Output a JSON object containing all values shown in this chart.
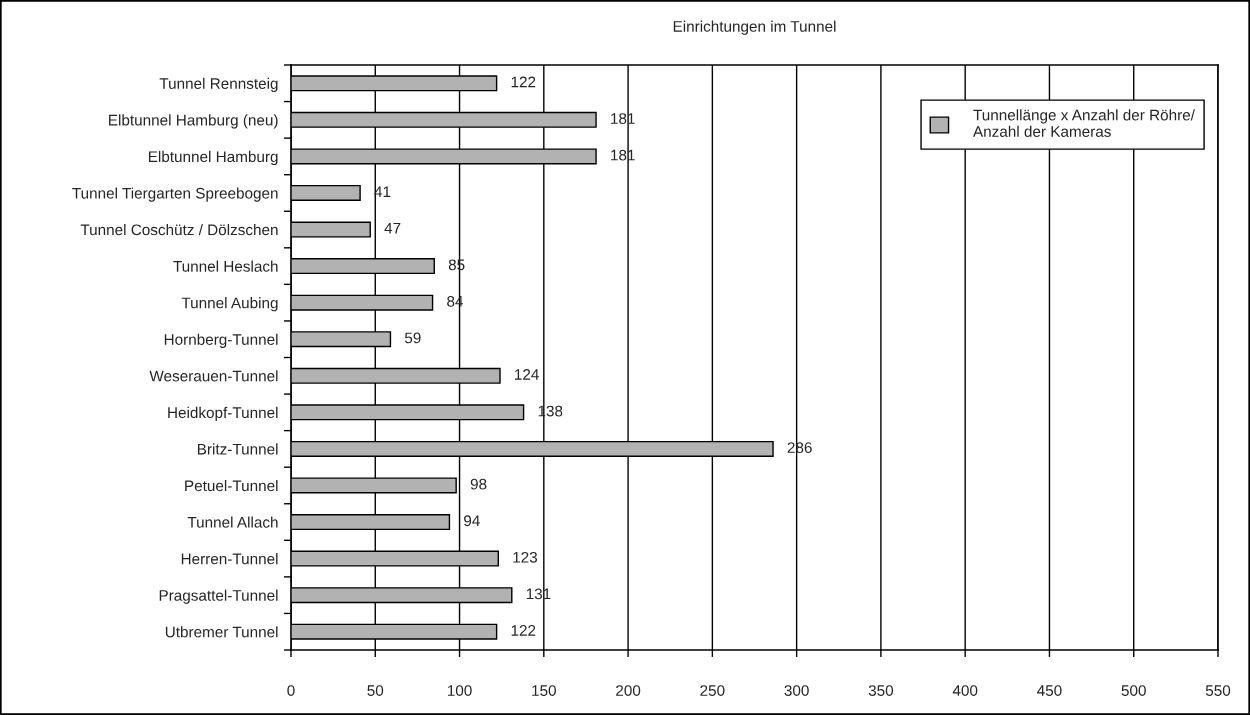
{
  "chart_data": {
    "type": "bar",
    "orientation": "horizontal",
    "title": "Einrichtungen im Tunnel",
    "categories": [
      "Tunnel Rennsteig",
      "Elbtunnel Hamburg (neu)",
      "Elbtunnel Hamburg",
      "Tunnel Tiergarten Spreebogen",
      "Tunnel Coschütz / Dölzschen",
      "Tunnel Heslach",
      "Tunnel Aubing",
      "Hornberg-Tunnel",
      "Weserauen-Tunnel",
      "Heidkopf-Tunnel",
      "Britz-Tunnel",
      "Petuel-Tunnel",
      "Tunnel Allach",
      "Herren-Tunnel",
      "Pragsattel-Tunnel",
      "Utbremer Tunnel"
    ],
    "series": [
      {
        "name": "Tunnellänge x Anzahl der Röhre/\nAnzahl der Kameras",
        "color": "#b2b2b2",
        "values": [
          122,
          181,
          181,
          41,
          47,
          85,
          84,
          59,
          124,
          138,
          286,
          98,
          94,
          123,
          131,
          122
        ]
      }
    ],
    "xlim": [
      0,
      550
    ],
    "xticks": [
      0,
      50,
      100,
      150,
      200,
      250,
      300,
      350,
      400,
      450,
      500,
      550
    ],
    "grid": "x",
    "legend": "top right",
    "data_labels": true
  }
}
